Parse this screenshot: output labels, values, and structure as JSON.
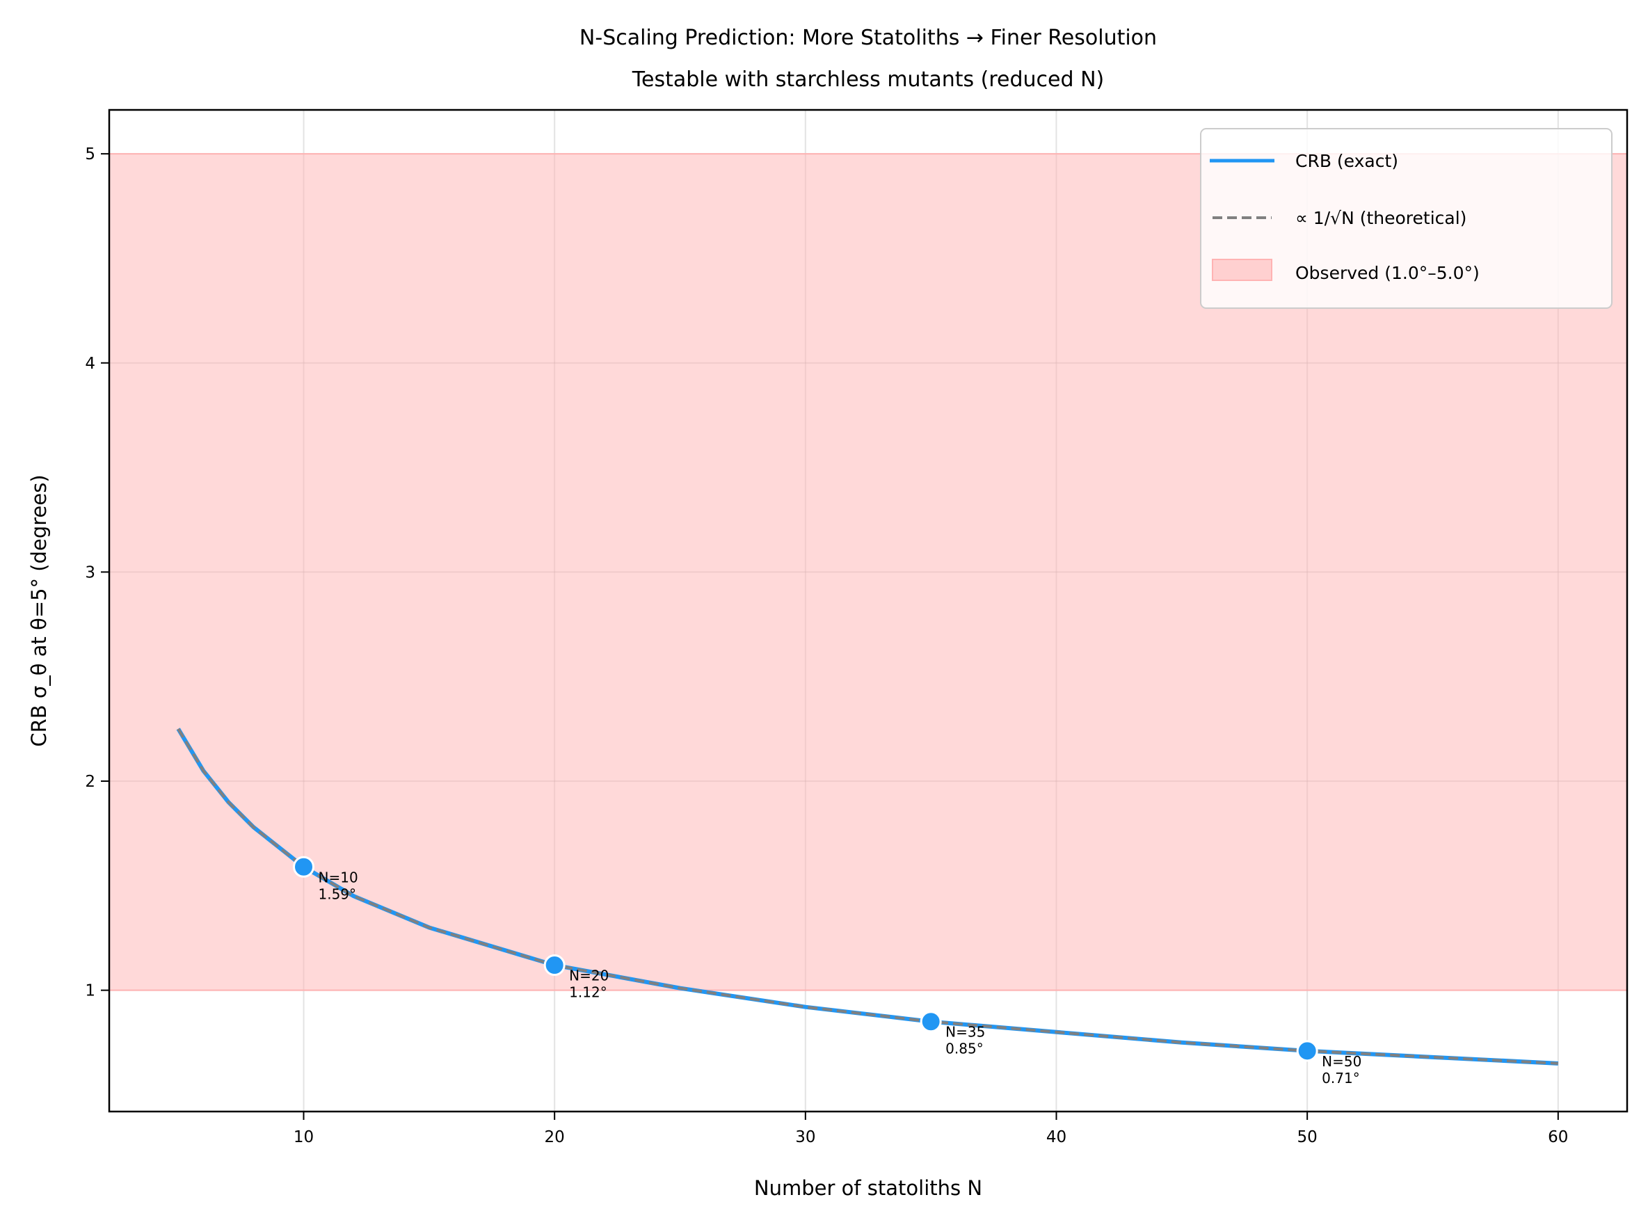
{
  "chart_data": {
    "type": "line",
    "title": [
      "N-Scaling Prediction: More Statoliths → Finer Resolution",
      "Testable with starchless mutants (reduced N)"
    ],
    "xlabel": "Number of statoliths N",
    "ylabel": "CRB σ_θ at θ=5° (degrees)",
    "xlim": [
      2.25,
      62.75
    ],
    "ylim": [
      0.42,
      5.21
    ],
    "xticks": [
      10,
      20,
      30,
      40,
      50,
      60
    ],
    "yticks": [
      1,
      2,
      3,
      4,
      5
    ],
    "grid": true,
    "legend_placement": "top-right",
    "x": [
      5,
      6,
      7,
      8,
      10,
      12,
      15,
      20,
      25,
      30,
      35,
      40,
      45,
      50,
      55,
      60
    ],
    "series": [
      {
        "name": "CRB (exact)",
        "color": "#2196f3",
        "style": "solid",
        "values": [
          2.25,
          2.05,
          1.9,
          1.78,
          1.59,
          1.45,
          1.3,
          1.12,
          1.01,
          0.92,
          0.85,
          0.8,
          0.75,
          0.71,
          0.68,
          0.65
        ]
      },
      {
        "name": "∝ 1/√N (theoretical)",
        "color": "#808080",
        "style": "dashed",
        "values": [
          2.25,
          2.05,
          1.9,
          1.78,
          1.59,
          1.45,
          1.3,
          1.12,
          1.01,
          0.92,
          0.85,
          0.8,
          0.75,
          0.71,
          0.68,
          0.65
        ]
      }
    ],
    "band": {
      "name": "Observed (1.0°–5.0°)",
      "from": 1.0,
      "to": 5.0,
      "color": "#ffb3b3"
    },
    "annotations": [
      {
        "x": 10,
        "y": 1.59,
        "label": "N=10",
        "value": "1.59°"
      },
      {
        "x": 20,
        "y": 1.12,
        "label": "N=20",
        "value": "1.12°"
      },
      {
        "x": 35,
        "y": 0.85,
        "label": "N=35",
        "value": "0.85°"
      },
      {
        "x": 50,
        "y": 0.71,
        "label": "N=50",
        "value": "0.71°"
      }
    ]
  }
}
